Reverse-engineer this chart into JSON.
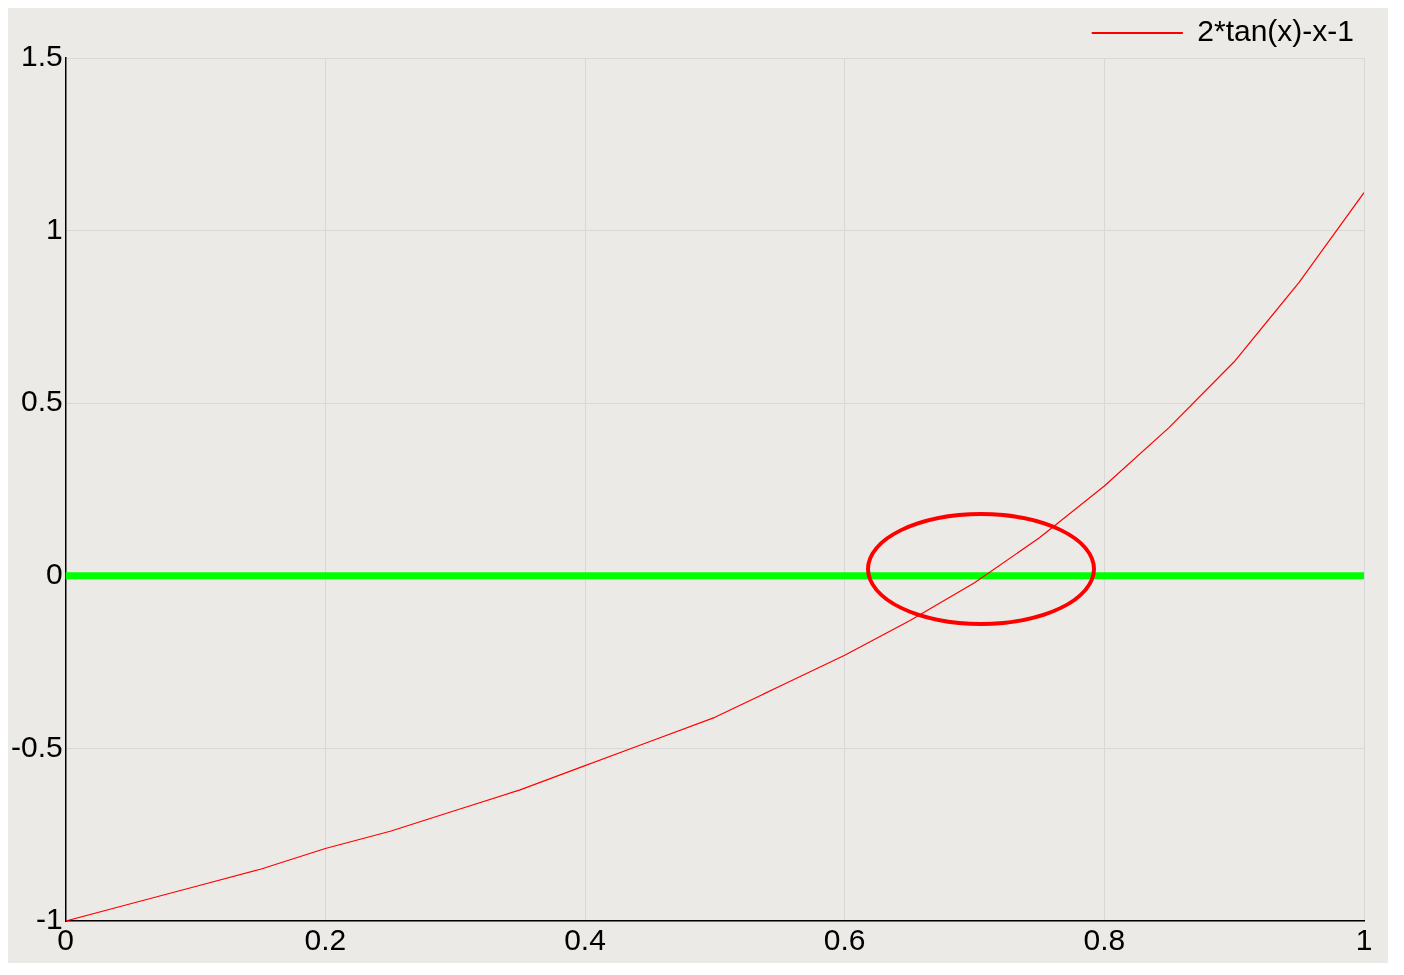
{
  "chart_data": {
    "type": "line",
    "x": [
      0,
      0.05,
      0.1,
      0.15,
      0.2,
      0.25,
      0.3,
      0.35,
      0.4,
      0.45,
      0.5,
      0.55,
      0.6,
      0.65,
      0.7,
      0.75,
      0.8,
      0.85,
      0.9,
      0.95,
      1
    ],
    "series": [
      {
        "name": "2*tan(x)-x-1",
        "color": "#ff0000",
        "values": [
          -1,
          -0.95,
          -0.9,
          -0.85,
          -0.79,
          -0.74,
          -0.68,
          -0.62,
          -0.55,
          -0.48,
          -0.41,
          -0.32,
          -0.23,
          -0.13,
          -0.02,
          0.11,
          0.26,
          0.43,
          0.62,
          0.85,
          1.11
        ]
      }
    ],
    "xlim": [
      0,
      1
    ],
    "xticks": [
      0,
      0.2,
      0.4,
      0.6,
      0.8,
      1
    ],
    "ylim": [
      -1,
      1.5
    ],
    "yticks": [
      -1,
      -0.5,
      0,
      0.5,
      1,
      1.5
    ],
    "ref_lines": [
      {
        "axis": "y",
        "value": 0,
        "color": "#00ff00"
      }
    ],
    "grid": true,
    "legend": "top right",
    "marker": "none",
    "line_style": "solid"
  }
}
